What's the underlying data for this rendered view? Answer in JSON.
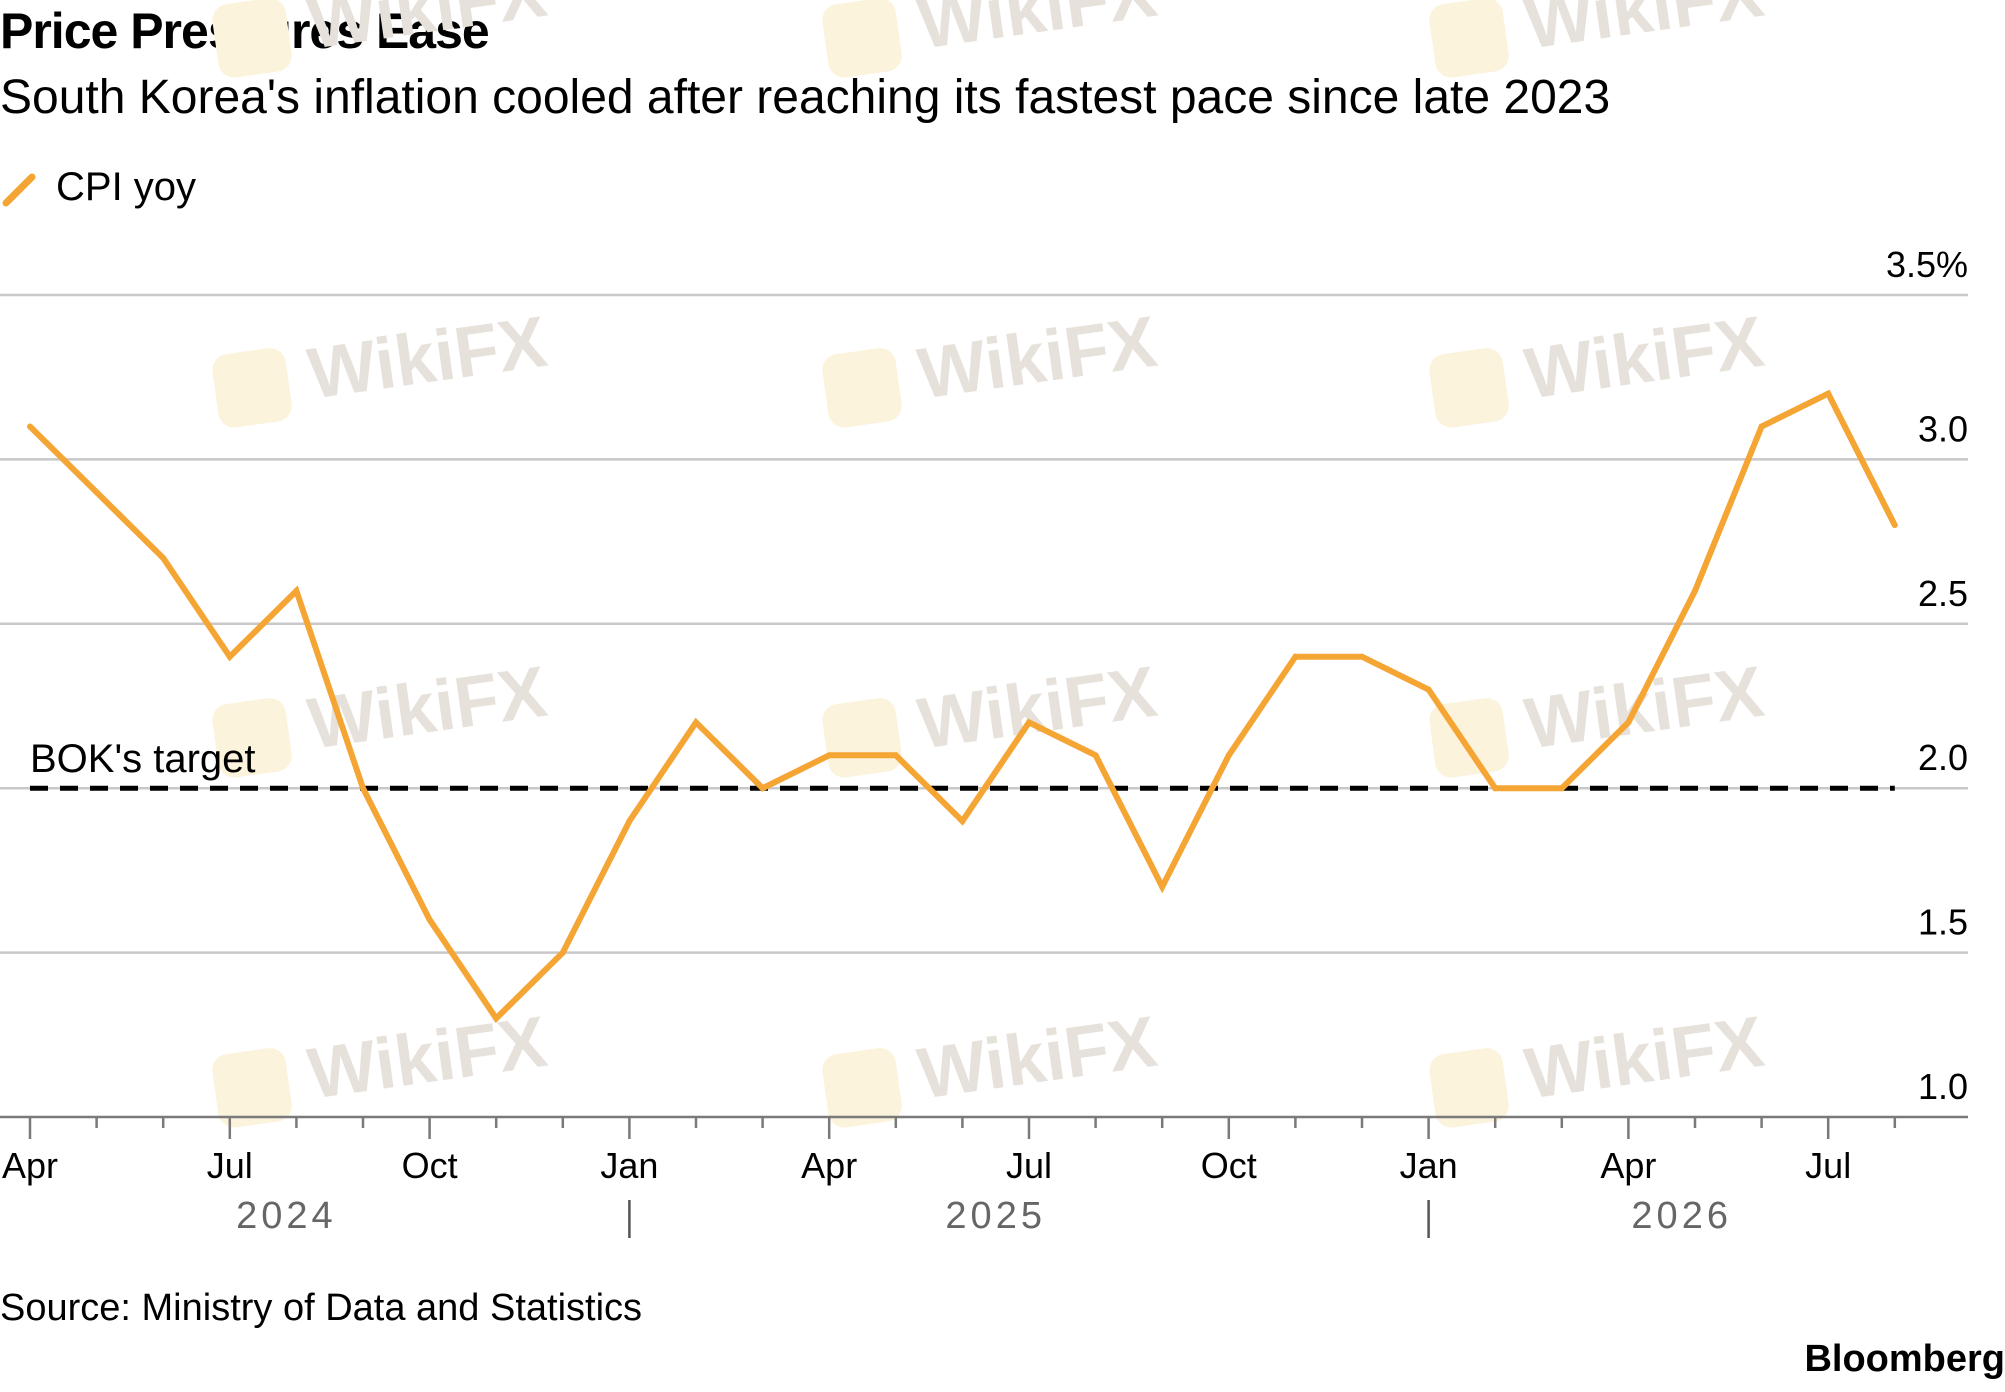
{
  "title": "Price Pressures Ease",
  "subtitle": "South Korea's inflation cooled after reaching its fastest pace since late 2023",
  "legend": {
    "label": "CPI yoy",
    "color": "#f5a533"
  },
  "source": "Source: Ministry of Data and Statistics",
  "brand": "Bloomberg",
  "watermark": "WikiFX",
  "chart_data": {
    "type": "line",
    "x": [
      "2024-04",
      "2024-05",
      "2024-06",
      "2024-07",
      "2024-08",
      "2024-09",
      "2024-10",
      "2024-11",
      "2024-12",
      "2025-01",
      "2025-02",
      "2025-03",
      "2025-04",
      "2025-05",
      "2025-06",
      "2025-07",
      "2025-08",
      "2025-09",
      "2025-10",
      "2025-11",
      "2025-12",
      "2026-01",
      "2026-02",
      "2026-03",
      "2026-04",
      "2026-05",
      "2026-06",
      "2026-07",
      "2026-08"
    ],
    "series": [
      {
        "name": "CPI yoy",
        "color": "#f5a533",
        "values": [
          3.1,
          2.9,
          2.7,
          2.4,
          2.6,
          2.0,
          1.6,
          1.3,
          1.5,
          1.9,
          2.2,
          2.0,
          2.1,
          2.1,
          1.9,
          2.2,
          2.1,
          1.7,
          2.1,
          2.4,
          2.4,
          2.3,
          2.0,
          2.0,
          2.2,
          2.6,
          3.1,
          3.2,
          2.8
        ]
      }
    ],
    "reference_line": {
      "label": "BOK's target",
      "value": 2.0,
      "style": "dashed",
      "color": "#000000"
    },
    "ylim": [
      1.0,
      3.5
    ],
    "y_ticks": [
      1.0,
      1.5,
      2.0,
      2.5,
      3.0,
      3.5
    ],
    "y_tick_labels": [
      "1.0",
      "1.5",
      "2.0",
      "2.5",
      "3.0",
      "3.5%"
    ],
    "y_axis_side": "right",
    "x_ticks": [
      {
        "date": "2024-04",
        "label": "Apr"
      },
      {
        "date": "2024-07",
        "label": "Jul"
      },
      {
        "date": "2024-10",
        "label": "Oct"
      },
      {
        "date": "2025-01",
        "label": "Jan"
      },
      {
        "date": "2025-04",
        "label": "Apr"
      },
      {
        "date": "2025-07",
        "label": "Jul"
      },
      {
        "date": "2025-10",
        "label": "Oct"
      },
      {
        "date": "2026-01",
        "label": "Jan"
      },
      {
        "date": "2026-04",
        "label": "Apr"
      },
      {
        "date": "2026-07",
        "label": "Jul"
      }
    ],
    "years": [
      "2024",
      "2025",
      "2026"
    ],
    "grid": true,
    "title": "Price Pressures Ease",
    "subtitle": "South Korea's inflation cooled after reaching its fastest pace since late 2023",
    "xlabel": "",
    "ylabel": ""
  }
}
